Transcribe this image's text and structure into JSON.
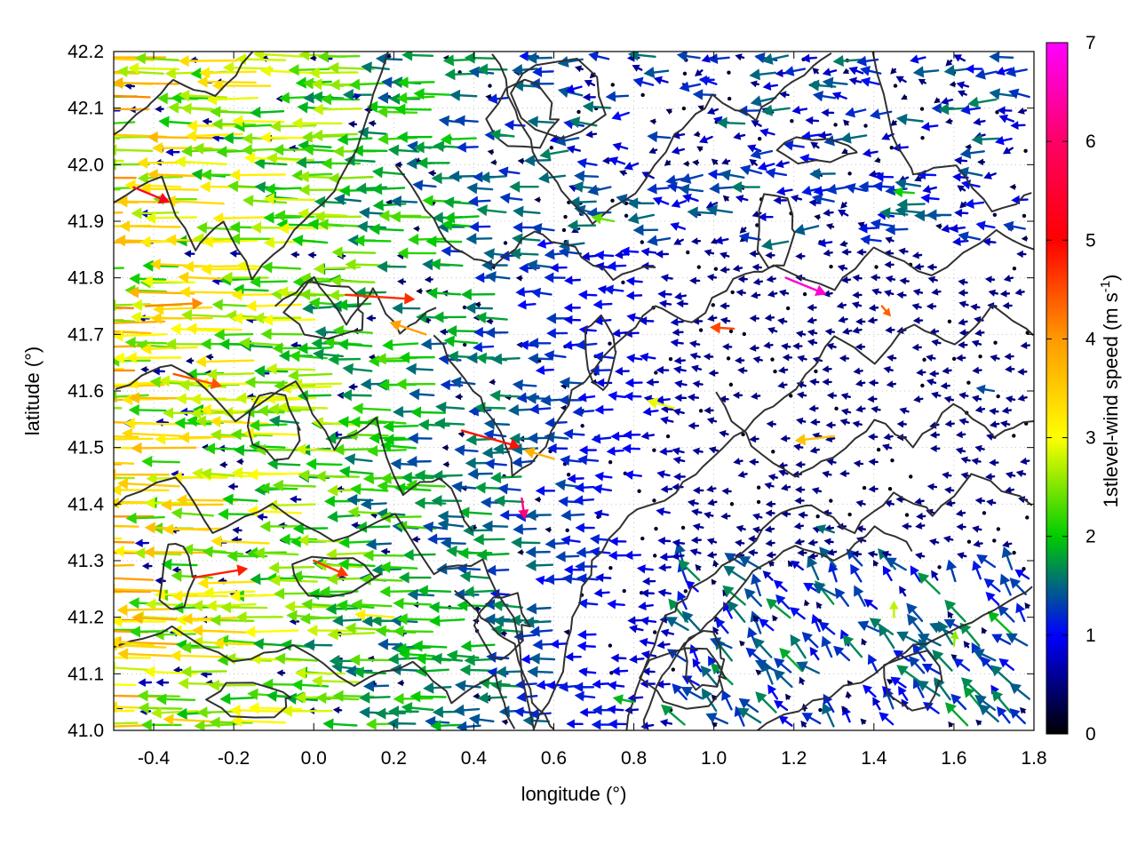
{
  "chart_data": {
    "type": "quiver",
    "xlabel": "longitude (°)",
    "ylabel": "latitude (°)",
    "xlim": [
      -0.5,
      1.8
    ],
    "ylim": [
      41.0,
      42.2
    ],
    "xticks": [
      "-0.4",
      "-0.2",
      "0.0",
      "0.2",
      "0.4",
      "0.6",
      "0.8",
      "1.0",
      "1.2",
      "1.4",
      "1.6",
      "1.8"
    ],
    "xtick_values": [
      -0.4,
      -0.2,
      0.0,
      0.2,
      0.4,
      0.6,
      0.8,
      1.0,
      1.2,
      1.4,
      1.6,
      1.8
    ],
    "yticks": [
      "41.0",
      "41.1",
      "41.2",
      "41.3",
      "41.4",
      "41.5",
      "41.6",
      "41.7",
      "41.8",
      "41.9",
      "42.0",
      "42.1",
      "42.2"
    ],
    "ytick_values": [
      41.0,
      41.1,
      41.2,
      41.3,
      41.4,
      41.5,
      41.6,
      41.7,
      41.8,
      41.9,
      42.0,
      42.1,
      42.2
    ],
    "grid": true,
    "colorbar": {
      "label": "1stlevel-wind speed (m s",
      "label_sup": "-1",
      "label_end": ")",
      "range": [
        0,
        7
      ],
      "ticks": [
        "0",
        "1",
        "2",
        "3",
        "4",
        "5",
        "6",
        "7"
      ],
      "tick_values": [
        0,
        1,
        2,
        3,
        4,
        5,
        6,
        7
      ],
      "colors": [
        "#000000",
        "#0000ff",
        "#00cc00",
        "#ffff00",
        "#ff9900",
        "#ff0000",
        "#ff00ff"
      ]
    },
    "contour_color": "#303030",
    "wind_vectors": [
      {
        "lon": -0.45,
        "lat": 41.96,
        "u": 2.4,
        "v": -1.0,
        "speed": 6.0
      },
      {
        "lon": 0.08,
        "lat": 41.77,
        "u": 4.6,
        "v": -0.3,
        "speed": 5.5
      },
      {
        "lon": 1.18,
        "lat": 41.8,
        "u": 2.7,
        "v": -1.1,
        "speed": 6.8
      },
      {
        "lon": 0.52,
        "lat": 41.41,
        "u": 0.2,
        "v": -1.4,
        "speed": 6.4
      },
      {
        "lon": 0.37,
        "lat": 41.53,
        "u": 3.9,
        "v": -1.1,
        "speed": 5.7
      },
      {
        "lon": -0.35,
        "lat": 41.63,
        "u": 3.2,
        "v": -0.8,
        "speed": 5.2
      },
      {
        "lon": -0.3,
        "lat": 41.27,
        "u": 3.6,
        "v": 0.6,
        "speed": 5.6
      },
      {
        "lon": 0.0,
        "lat": 41.3,
        "u": 2.3,
        "v": -1.0,
        "speed": 5.4
      },
      {
        "lon": 1.05,
        "lat": 41.71,
        "u": -1.6,
        "v": 0.1,
        "speed": 5.3
      },
      {
        "lon": 1.42,
        "lat": 41.75,
        "u": 0.6,
        "v": -0.7,
        "speed": 5.1
      },
      {
        "lon": -0.42,
        "lat": 41.75,
        "u": 3.8,
        "v": 0.2,
        "speed": 4.8
      },
      {
        "lon": 0.28,
        "lat": 41.7,
        "u": -2.4,
        "v": 0.8,
        "speed": 4.6
      },
      {
        "lon": 0.6,
        "lat": 41.48,
        "u": -2.0,
        "v": 0.6,
        "speed": 4.4
      },
      {
        "lon": 1.3,
        "lat": 41.52,
        "u": -2.6,
        "v": -0.3,
        "speed": 4.2
      },
      {
        "lon": -0.4,
        "lat": 41.15,
        "u": -3.0,
        "v": 0.3,
        "speed": 3.9
      },
      {
        "lon": 0.2,
        "lat": 41.2,
        "u": -2.6,
        "v": 0.2,
        "speed": 3.7
      },
      {
        "lon": 1.45,
        "lat": 41.2,
        "u": 0.0,
        "v": 1.1,
        "speed": 3.2
      },
      {
        "lon": 1.6,
        "lat": 41.15,
        "u": 0.1,
        "v": 1.0,
        "speed": 3.0
      },
      {
        "lon": 0.9,
        "lat": 41.57,
        "u": -1.8,
        "v": 0.5,
        "speed": 3.4
      },
      {
        "lon": 0.75,
        "lat": 41.9,
        "u": -1.5,
        "v": 0.3,
        "speed": 2.8
      },
      {
        "lon": 1.5,
        "lat": 41.95,
        "u": -1.4,
        "v": 0.1,
        "speed": 2.4
      },
      {
        "lon": 0.5,
        "lat": 42.05,
        "u": -1.6,
        "v": 0.2,
        "speed": 2.0
      },
      {
        "lon": 1.0,
        "lat": 42.15,
        "u": -1.0,
        "v": 0.0,
        "speed": 1.3
      },
      {
        "lon": 0.1,
        "lat": 42.12,
        "u": 0.5,
        "v": 0.1,
        "speed": 0.8
      },
      {
        "lon": 1.3,
        "lat": 41.35,
        "u": -1.2,
        "v": 0.4,
        "speed": 1.8
      },
      {
        "lon": 0.8,
        "lat": 41.05,
        "u": -1.4,
        "v": 0.3,
        "speed": 2.2
      },
      {
        "lon": -0.2,
        "lat": 41.45,
        "u": -2.2,
        "v": 0.2,
        "speed": 3.1
      },
      {
        "lon": 1.7,
        "lat": 41.6,
        "u": -1.2,
        "v": 0.2,
        "speed": 1.6
      }
    ]
  }
}
